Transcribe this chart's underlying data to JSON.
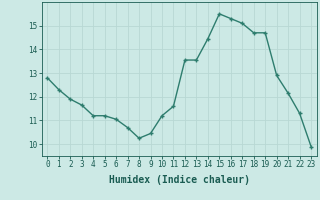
{
  "x": [
    0,
    1,
    2,
    3,
    4,
    5,
    6,
    7,
    8,
    9,
    10,
    11,
    12,
    13,
    14,
    15,
    16,
    17,
    18,
    19,
    20,
    21,
    22,
    23
  ],
  "y": [
    12.8,
    12.3,
    11.9,
    11.65,
    11.2,
    11.2,
    11.05,
    10.7,
    10.25,
    10.45,
    11.2,
    11.6,
    13.55,
    13.55,
    14.45,
    15.5,
    15.3,
    15.1,
    14.7,
    14.7,
    12.9,
    12.15,
    11.3,
    9.9
  ],
  "line_color": "#2e7d6e",
  "marker": "+",
  "markersize": 3.5,
  "linewidth": 1.0,
  "xlabel": "Humidex (Indice chaleur)",
  "xlabel_fontsize": 7,
  "ylim": [
    9.5,
    16.0
  ],
  "xlim": [
    -0.5,
    23.5
  ],
  "yticks": [
    10,
    11,
    12,
    13,
    14,
    15
  ],
  "xticks": [
    0,
    1,
    2,
    3,
    4,
    5,
    6,
    7,
    8,
    9,
    10,
    11,
    12,
    13,
    14,
    15,
    16,
    17,
    18,
    19,
    20,
    21,
    22,
    23
  ],
  "bg_color": "#cce9e5",
  "grid_color": "#b8d8d4",
  "tick_color": "#1a5c52",
  "tick_fontsize": 5.5,
  "axis_color": "#1a5c52"
}
